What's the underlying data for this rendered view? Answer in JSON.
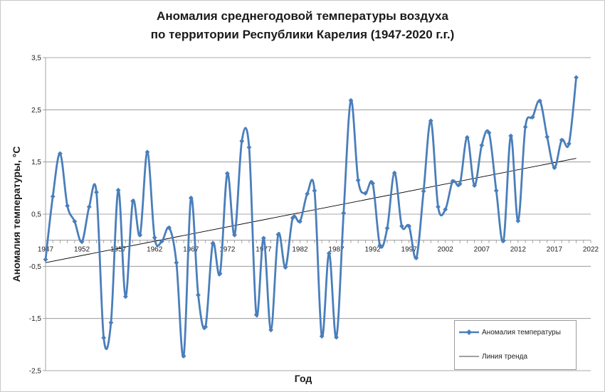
{
  "chart_data": {
    "type": "line",
    "title": [
      "Аномалия среднегодовой температуры воздуха",
      "по территории  Республики Карелия (1947-2020 г.г.)"
    ],
    "xlabel": "Год",
    "ylabel": "Аномалия температуры, °C",
    "xlim": [
      1947,
      2022
    ],
    "ylim": [
      -2.5,
      3.5
    ],
    "yticks": [
      -2.5,
      -1.5,
      -0.5,
      0.5,
      1.5,
      2.5,
      3.5
    ],
    "ytick_labels": [
      "-2,5",
      "-1,5",
      "-0,5",
      "0,5",
      "1,5",
      "2,5",
      "3,5"
    ],
    "xticks": [
      1947,
      1952,
      1957,
      1962,
      1967,
      1972,
      1977,
      1982,
      1987,
      1992,
      1997,
      2002,
      2007,
      2012,
      2017,
      2022
    ],
    "grid": "horizontal",
    "legend_position": "bottom-right",
    "series": [
      {
        "name": "Аномалия температуры",
        "color": "#4a7ebb",
        "marker": "diamond",
        "smooth": true,
        "x": [
          1947,
          1948,
          1949,
          1950,
          1951,
          1952,
          1953,
          1954,
          1955,
          1956,
          1957,
          1958,
          1959,
          1960,
          1961,
          1962,
          1963,
          1964,
          1965,
          1966,
          1967,
          1968,
          1969,
          1970,
          1971,
          1972,
          1973,
          1974,
          1975,
          1976,
          1977,
          1978,
          1979,
          1980,
          1981,
          1982,
          1983,
          1984,
          1985,
          1986,
          1987,
          1988,
          1989,
          1990,
          1991,
          1992,
          1993,
          1994,
          1995,
          1996,
          1997,
          1998,
          1999,
          2000,
          2001,
          2002,
          2003,
          2004,
          2005,
          2006,
          2007,
          2008,
          2009,
          2010,
          2011,
          2012,
          2013,
          2014,
          2015,
          2016,
          2017,
          2018,
          2019,
          2020
        ],
        "y": [
          -0.37,
          0.84,
          1.66,
          0.66,
          0.36,
          -0.03,
          0.64,
          0.92,
          -1.87,
          -1.58,
          0.96,
          -1.08,
          0.75,
          0.1,
          1.69,
          0.05,
          -0.02,
          0.24,
          -0.43,
          -2.22,
          0.81,
          -1.05,
          -1.66,
          -0.06,
          -0.64,
          1.28,
          0.1,
          1.9,
          1.78,
          -1.43,
          0.04,
          -1.72,
          0.11,
          -0.52,
          0.43,
          0.36,
          0.89,
          0.95,
          -1.84,
          -0.25,
          -1.86,
          0.52,
          2.68,
          1.15,
          0.9,
          1.09,
          -0.1,
          0.23,
          1.29,
          0.27,
          0.27,
          -0.34,
          0.94,
          2.29,
          0.64,
          0.59,
          1.13,
          1.08,
          1.97,
          1.05,
          1.82,
          2.06,
          0.95,
          -0.01,
          2.0,
          0.37,
          2.17,
          2.36,
          2.67,
          1.98,
          1.39,
          1.92,
          1.85,
          3.12
        ]
      },
      {
        "name": "Линия тренда",
        "color": "#000000",
        "x": [
          1947,
          2020
        ],
        "y": [
          -0.43,
          1.57
        ]
      }
    ]
  }
}
